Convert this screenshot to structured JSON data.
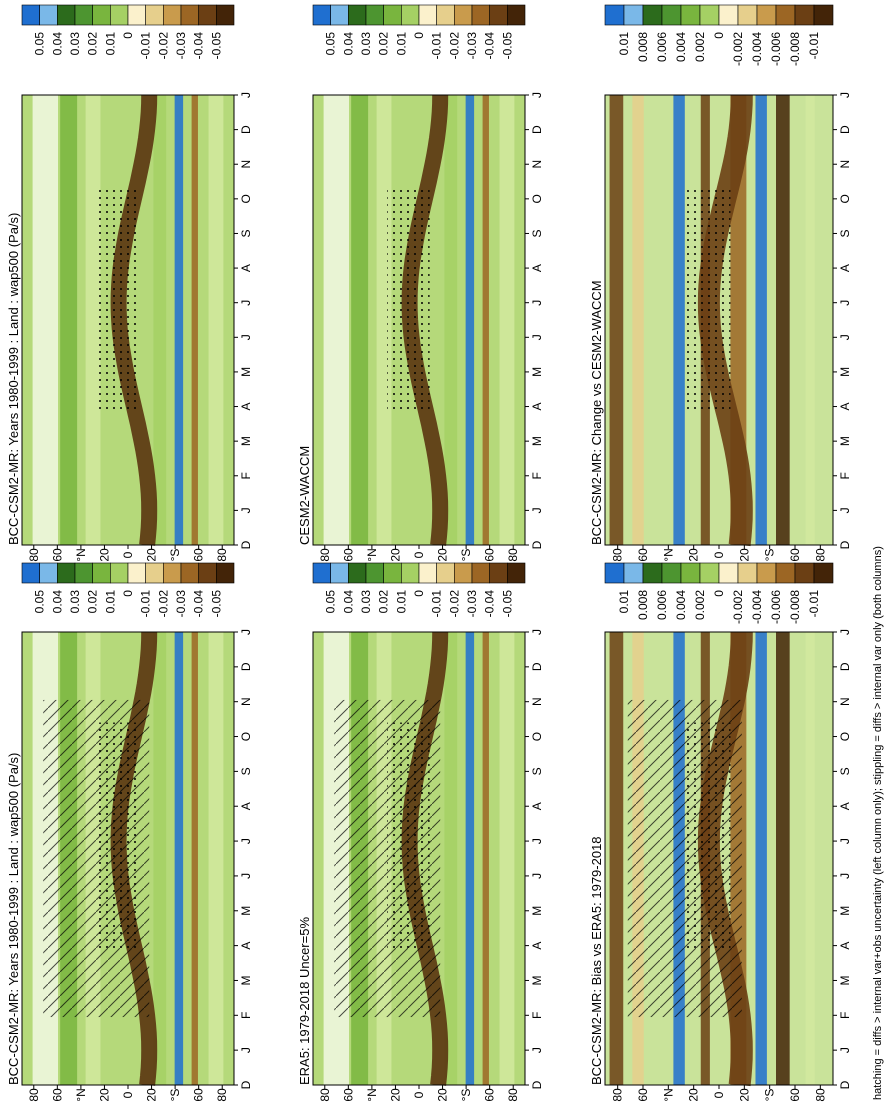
{
  "panels": [
    {
      "title": "BCC-CSM2-MR: Years 1980-1999 : Land : wap500 (Pa/s)",
      "colorbar_labels": [
        "0.05",
        "0.04",
        "0.03",
        "0.02",
        "0.01",
        "0",
        "-0.01",
        "-0.02",
        "-0.03",
        "-0.04",
        "-0.05"
      ],
      "lat_labels": [
        "80",
        "60",
        "°N",
        "20",
        "0",
        "20",
        "°S",
        "60",
        "80"
      ],
      "month_labels": [
        "D",
        "J",
        "F",
        "M",
        "A",
        "M",
        "J",
        "J",
        "A",
        "S",
        "O",
        "N",
        "D",
        "J"
      ]
    },
    {
      "title": "CESM2-WACCM",
      "colorbar_labels": [
        "0.05",
        "0.04",
        "0.03",
        "0.02",
        "0.01",
        "0",
        "-0.01",
        "-0.02",
        "-0.03",
        "-0.04",
        "-0.05"
      ],
      "lat_labels": [
        "80",
        "60",
        "°N",
        "20",
        "0",
        "20",
        "°S",
        "60",
        "80"
      ],
      "month_labels": [
        "D",
        "J",
        "F",
        "M",
        "A",
        "M",
        "J",
        "J",
        "A",
        "S",
        "O",
        "N",
        "D",
        "J"
      ]
    },
    {
      "title": "BCC-CSM2-MR: Change vs CESM2-WACCM",
      "colorbar_labels": [
        "0.01",
        "0.008",
        "0.006",
        "0.004",
        "0.002",
        "0",
        "-0.002",
        "-0.004",
        "-0.006",
        "-0.008",
        "-0.01"
      ],
      "lat_labels": [
        "80",
        "60",
        "°N",
        "20",
        "0",
        "20",
        "°S",
        "60",
        "80"
      ],
      "month_labels": [
        "D",
        "J",
        "F",
        "M",
        "A",
        "M",
        "J",
        "J",
        "A",
        "S",
        "O",
        "N",
        "D",
        "J"
      ]
    },
    {
      "title": "BCC-CSM2-MR: Years 1980-1999 : Land : wap500 (Pa/s)",
      "colorbar_labels": [
        "0.05",
        "0.04",
        "0.03",
        "0.02",
        "0.01",
        "0",
        "-0.01",
        "-0.02",
        "-0.03",
        "-0.04",
        "-0.05"
      ],
      "lat_labels": [
        "80",
        "60",
        "°N",
        "20",
        "0",
        "20",
        "°S",
        "60",
        "80"
      ],
      "month_labels": [
        "D",
        "J",
        "F",
        "M",
        "A",
        "M",
        "J",
        "J",
        "A",
        "S",
        "O",
        "N",
        "D",
        "J"
      ]
    },
    {
      "title": "ERA5: 1979-2018 Uncer=5%",
      "colorbar_labels": [
        "0.05",
        "0.04",
        "0.03",
        "0.02",
        "0.01",
        "0",
        "-0.01",
        "-0.02",
        "-0.03",
        "-0.04",
        "-0.05"
      ],
      "lat_labels": [
        "80",
        "60",
        "°N",
        "20",
        "0",
        "20",
        "°S",
        "60",
        "80"
      ],
      "month_labels": [
        "D",
        "J",
        "F",
        "M",
        "A",
        "M",
        "J",
        "J",
        "A",
        "S",
        "O",
        "N",
        "D",
        "J"
      ]
    },
    {
      "title": "BCC-CSM2-MR: Bias vs ERA5: 1979-2018",
      "colorbar_labels": [
        "0.01",
        "0.008",
        "0.006",
        "0.004",
        "0.002",
        "0",
        "-0.002",
        "-0.004",
        "-0.006",
        "-0.008",
        "-0.01"
      ],
      "lat_labels": [
        "80",
        "60",
        "°N",
        "20",
        "0",
        "20",
        "°S",
        "60",
        "80"
      ],
      "month_labels": [
        "D",
        "J",
        "F",
        "M",
        "A",
        "M",
        "J",
        "J",
        "A",
        "S",
        "O",
        "N",
        "D",
        "J"
      ]
    }
  ],
  "footnote": "hatching = diffs > internal var+obs uncertainty (left column only); stippling = diffs > internal var only (both columns)"
}
